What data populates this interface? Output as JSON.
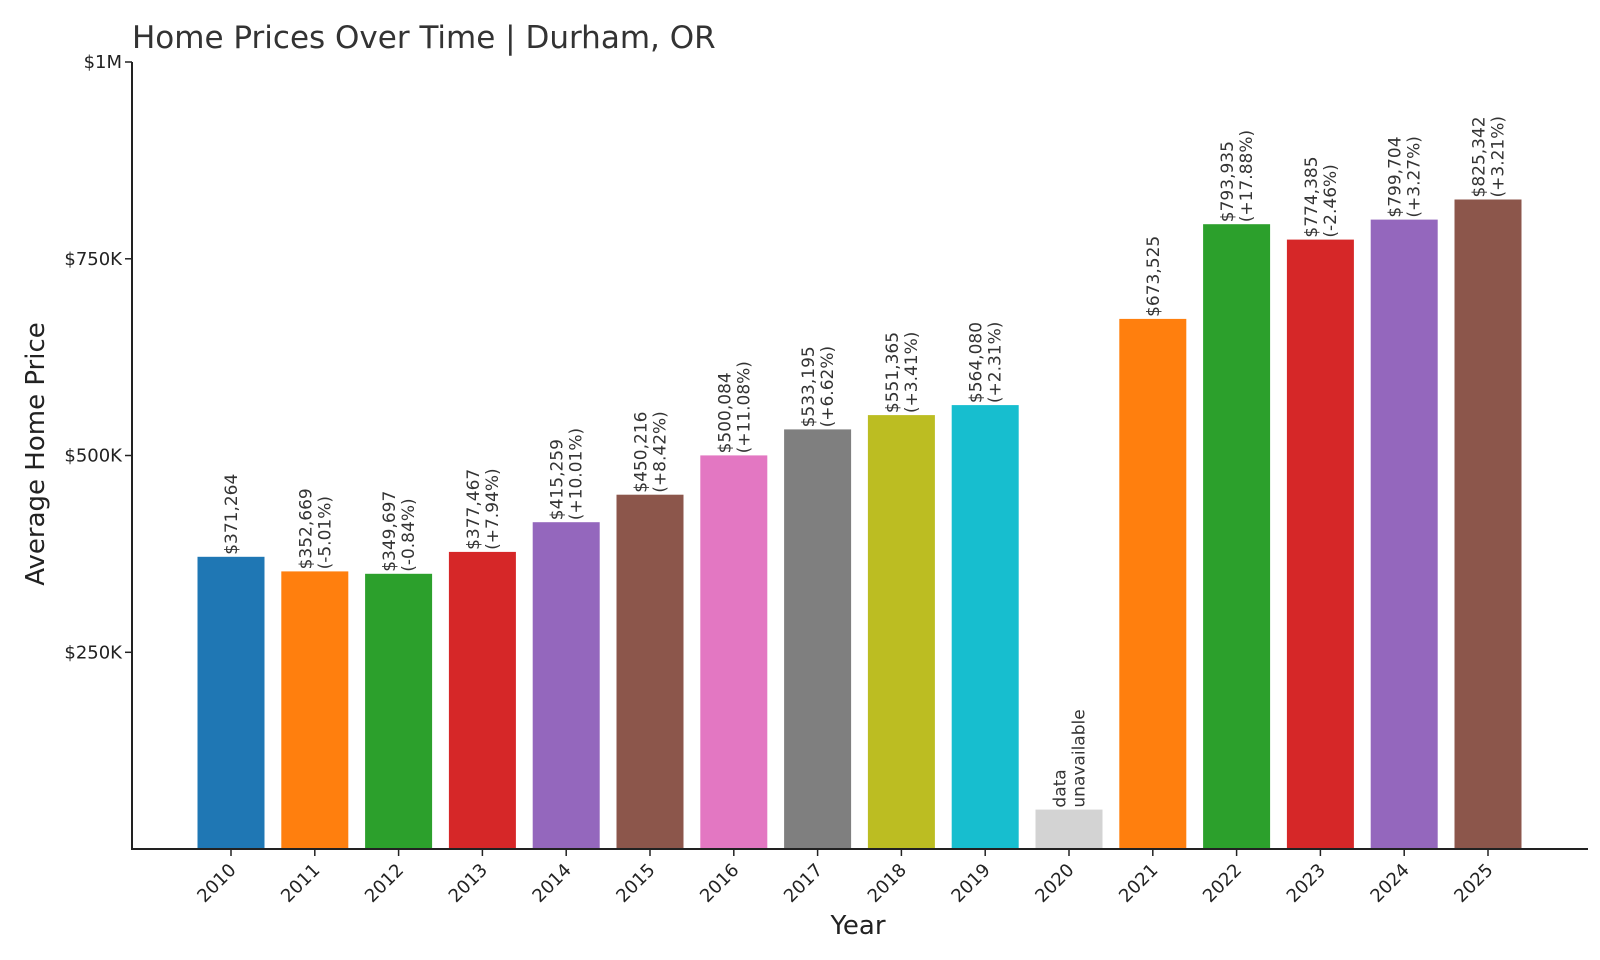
{
  "chart_data": {
    "type": "bar",
    "title": "Home Prices Over Time | Durham, OR",
    "xlabel": "Year",
    "ylabel": "Average Home Price",
    "ylim": [
      0,
      1000000
    ],
    "yticks": [
      {
        "value": 250000,
        "label": "$250K"
      },
      {
        "value": 500000,
        "label": "$500K"
      },
      {
        "value": 750000,
        "label": "$750K"
      },
      {
        "value": 1000000,
        "label": "$1M"
      }
    ],
    "grid": false,
    "legend": "none",
    "unavailable_placeholder_value": 50000,
    "bars": [
      {
        "category": "2010",
        "value": 371264,
        "value_label": "$371,264",
        "change_label": "",
        "color": "#1f77b4",
        "available": true
      },
      {
        "category": "2011",
        "value": 352669,
        "value_label": "$352,669",
        "change_label": "(-5.01%)",
        "color": "#ff7f0e",
        "available": true
      },
      {
        "category": "2012",
        "value": 349697,
        "value_label": "$349,697",
        "change_label": "(-0.84%)",
        "color": "#2ca02c",
        "available": true
      },
      {
        "category": "2013",
        "value": 377467,
        "value_label": "$377,467",
        "change_label": "(+7.94%)",
        "color": "#d62728",
        "available": true
      },
      {
        "category": "2014",
        "value": 415259,
        "value_label": "$415,259",
        "change_label": "(+10.01%)",
        "color": "#9467bd",
        "available": true
      },
      {
        "category": "2015",
        "value": 450216,
        "value_label": "$450,216",
        "change_label": "(+8.42%)",
        "color": "#8c564b",
        "available": true
      },
      {
        "category": "2016",
        "value": 500084,
        "value_label": "$500,084",
        "change_label": "(+11.08%)",
        "color": "#e377c2",
        "available": true
      },
      {
        "category": "2017",
        "value": 533195,
        "value_label": "$533,195",
        "change_label": "(+6.62%)",
        "color": "#7f7f7f",
        "available": true
      },
      {
        "category": "2018",
        "value": 551365,
        "value_label": "$551,365",
        "change_label": "(+3.41%)",
        "color": "#bcbd22",
        "available": true
      },
      {
        "category": "2019",
        "value": 564080,
        "value_label": "$564,080",
        "change_label": "(+2.31%)",
        "color": "#17becf",
        "available": true
      },
      {
        "category": "2020",
        "value": null,
        "value_label": "data",
        "change_label": "unavailable",
        "color": "#d3d3d3",
        "available": false
      },
      {
        "category": "2021",
        "value": 673525,
        "value_label": "$673,525",
        "change_label": "",
        "color": "#ff7f0e",
        "available": true
      },
      {
        "category": "2022",
        "value": 793935,
        "value_label": "$793,935",
        "change_label": "(+17.88%)",
        "color": "#2ca02c",
        "available": true
      },
      {
        "category": "2023",
        "value": 774385,
        "value_label": "$774,385",
        "change_label": "(-2.46%)",
        "color": "#d62728",
        "available": true
      },
      {
        "category": "2024",
        "value": 799704,
        "value_label": "$799,704",
        "change_label": "(+3.27%)",
        "color": "#9467bd",
        "available": true
      },
      {
        "category": "2025",
        "value": 825342,
        "value_label": "$825,342",
        "change_label": "(+3.21%)",
        "color": "#8c564b",
        "available": true
      }
    ]
  }
}
